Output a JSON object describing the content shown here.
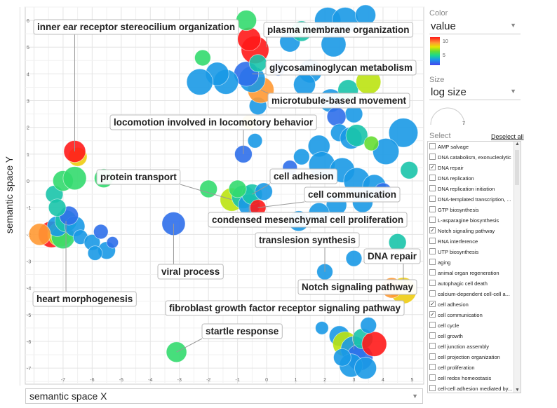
{
  "axes": {
    "x_label": "semantic space X",
    "y_label": "semantic space Y"
  },
  "color_panel": {
    "title": "Color",
    "selected": "value",
    "scale_max": "10",
    "scale_mid": "5",
    "colors": [
      "#ff1a1a",
      "#ff9933",
      "#e6e600",
      "#66dd33",
      "#1ad98c",
      "#1a99e6",
      "#3355ee",
      "#4444ee"
    ]
  },
  "size_panel": {
    "title": "Size",
    "selected": "log size",
    "dial_value": "7"
  },
  "select_panel": {
    "title": "Select",
    "deselect_label": "Deselect all",
    "items": [
      {
        "label": "AMP salvage",
        "checked": false
      },
      {
        "label": "DNA catabolism, exonucleolytic",
        "checked": false
      },
      {
        "label": "DNA repair",
        "checked": true
      },
      {
        "label": "DNA replication",
        "checked": false
      },
      {
        "label": "DNA replication initiation",
        "checked": false
      },
      {
        "label": "DNA-templated transcription, ...",
        "checked": false
      },
      {
        "label": "GTP biosynthesis",
        "checked": false
      },
      {
        "label": "L-asparagine biosynthesis",
        "checked": false
      },
      {
        "label": "Notch signaling pathway",
        "checked": true
      },
      {
        "label": "RNA interference",
        "checked": false
      },
      {
        "label": "UTP biosynthesis",
        "checked": false
      },
      {
        "label": "aging",
        "checked": false
      },
      {
        "label": "animal organ regeneration",
        "checked": false
      },
      {
        "label": "autophagic cell death",
        "checked": false
      },
      {
        "label": "calcium-dependent cell-cell a...",
        "checked": false
      },
      {
        "label": "cell adhesion",
        "checked": true
      },
      {
        "label": "cell communication",
        "checked": true
      },
      {
        "label": "cell cycle",
        "checked": false
      },
      {
        "label": "cell growth",
        "checked": false
      },
      {
        "label": "cell junction assembly",
        "checked": false
      },
      {
        "label": "cell projection organization",
        "checked": false
      },
      {
        "label": "cell proliferation",
        "checked": false
      },
      {
        "label": "cell redox homeostasis",
        "checked": false
      },
      {
        "label": "cell-cell adhesion mediated by...",
        "checked": false
      }
    ]
  },
  "chart_data": {
    "type": "scatter",
    "title": "",
    "xlabel": "semantic space X",
    "ylabel": "semantic space Y",
    "xlim": [
      -8.3,
      5.4
    ],
    "ylim": [
      -7.6,
      6.5
    ],
    "xticks": [
      -7,
      -6,
      -5,
      -4,
      -3,
      -2,
      -1,
      0,
      1,
      2,
      3,
      4,
      5
    ],
    "yticks": [
      -7,
      -6,
      -5,
      -4,
      -3,
      -2,
      -1,
      0,
      1,
      2,
      3,
      4,
      5,
      6
    ],
    "color_metric": "value",
    "color_range": [
      0,
      10
    ],
    "size_metric": "log size",
    "points": [
      {
        "x": -7.4,
        "y": -2.0,
        "v": 0,
        "s": 0.9
      },
      {
        "x": -7.1,
        "y": -2.0,
        "v": 4,
        "s": 0.85
      },
      {
        "x": -7.0,
        "y": -2.1,
        "v": 6,
        "s": 0.8
      },
      {
        "x": -7.2,
        "y": -1.7,
        "v": 8,
        "s": 0.7
      },
      {
        "x": -6.9,
        "y": -1.5,
        "v": 7,
        "s": 0.75
      },
      {
        "x": -6.6,
        "y": -1.7,
        "v": 8,
        "s": 0.7
      },
      {
        "x": -6.8,
        "y": -1.3,
        "v": 9,
        "s": 0.65
      },
      {
        "x": -7.3,
        "y": -0.5,
        "v": 7,
        "s": 0.6
      },
      {
        "x": -7.2,
        "y": -1.0,
        "v": 7,
        "s": 0.6
      },
      {
        "x": -7.0,
        "y": 0.0,
        "v": 6,
        "s": 0.7
      },
      {
        "x": -6.6,
        "y": 0.1,
        "v": 6,
        "s": 0.8
      },
      {
        "x": -6.5,
        "y": 0.9,
        "v": 3,
        "s": 0.65
      },
      {
        "x": -6.6,
        "y": 1.1,
        "v": 0,
        "s": 0.75
      },
      {
        "x": -5.6,
        "y": 0.1,
        "v": 6,
        "s": 0.65
      },
      {
        "x": -6.4,
        "y": -2.1,
        "v": 8,
        "s": 0.5
      },
      {
        "x": -6.0,
        "y": -2.3,
        "v": 8,
        "s": 0.55
      },
      {
        "x": -5.7,
        "y": -1.9,
        "v": 9,
        "s": 0.5
      },
      {
        "x": -5.5,
        "y": -2.6,
        "v": 8,
        "s": 0.6
      },
      {
        "x": -5.9,
        "y": -2.7,
        "v": 8,
        "s": 0.5
      },
      {
        "x": -5.3,
        "y": -2.3,
        "v": 9,
        "s": 0.4
      },
      {
        "x": -7.8,
        "y": -2.0,
        "v": 2,
        "s": 0.75
      },
      {
        "x": -3.2,
        "y": -1.6,
        "v": 9,
        "s": 0.8
      },
      {
        "x": -3.1,
        "y": -6.4,
        "v": 6,
        "s": 0.7
      },
      {
        "x": -2.0,
        "y": -0.3,
        "v": 6,
        "s": 0.6
      },
      {
        "x": -1.2,
        "y": -0.7,
        "v": 4,
        "s": 0.8
      },
      {
        "x": -0.8,
        "y": -0.6,
        "v": 7,
        "s": 0.8
      },
      {
        "x": -0.6,
        "y": -0.9,
        "v": 8,
        "s": 0.75
      },
      {
        "x": -0.5,
        "y": -0.5,
        "v": 7,
        "s": 0.7
      },
      {
        "x": -0.3,
        "y": -1.0,
        "v": 0,
        "s": 0.55
      },
      {
        "x": -1.0,
        "y": -0.3,
        "v": 6,
        "s": 0.6
      },
      {
        "x": -0.1,
        "y": -0.4,
        "v": 8,
        "s": 0.6
      },
      {
        "x": -0.8,
        "y": 1.0,
        "v": 9,
        "s": 0.6
      },
      {
        "x": -0.4,
        "y": 1.5,
        "v": 8,
        "s": 0.5
      },
      {
        "x": -0.6,
        "y": 2.2,
        "v": 3,
        "s": 0.5
      },
      {
        "x": -0.3,
        "y": 2.8,
        "v": 8,
        "s": 0.6
      },
      {
        "x": -0.2,
        "y": 3.4,
        "v": 2,
        "s": 0.9
      },
      {
        "x": -0.5,
        "y": 3.8,
        "v": 8,
        "s": 0.9
      },
      {
        "x": -0.7,
        "y": 4.0,
        "v": 9,
        "s": 0.85
      },
      {
        "x": -1.4,
        "y": 3.7,
        "v": 8,
        "s": 0.85
      },
      {
        "x": -1.7,
        "y": 4.0,
        "v": 8,
        "s": 0.8
      },
      {
        "x": -2.3,
        "y": 3.7,
        "v": 8,
        "s": 0.9
      },
      {
        "x": -2.2,
        "y": 4.6,
        "v": 6,
        "s": 0.55
      },
      {
        "x": -0.4,
        "y": 4.9,
        "v": 0,
        "s": 0.95
      },
      {
        "x": -0.6,
        "y": 5.3,
        "v": 0,
        "s": 0.8
      },
      {
        "x": -0.7,
        "y": 6.0,
        "v": 6,
        "s": 0.7
      },
      {
        "x": -0.3,
        "y": 4.4,
        "v": 7,
        "s": 0.6
      },
      {
        "x": 0.4,
        "y": 4.2,
        "v": 9,
        "s": 0.5
      },
      {
        "x": 0.8,
        "y": 5.2,
        "v": 8,
        "s": 0.7
      },
      {
        "x": 1.2,
        "y": 5.6,
        "v": 7,
        "s": 0.7
      },
      {
        "x": 2.1,
        "y": 6.0,
        "v": 8,
        "s": 0.9
      },
      {
        "x": 2.7,
        "y": 6.0,
        "v": 8,
        "s": 0.9
      },
      {
        "x": 3.4,
        "y": 6.2,
        "v": 8,
        "s": 0.7
      },
      {
        "x": 2.3,
        "y": 5.1,
        "v": 8,
        "s": 0.85
      },
      {
        "x": 1.5,
        "y": 4.1,
        "v": 8,
        "s": 0.8
      },
      {
        "x": 1.3,
        "y": 3.6,
        "v": 8,
        "s": 0.75
      },
      {
        "x": 2.2,
        "y": 3.0,
        "v": 8,
        "s": 0.8
      },
      {
        "x": 2.8,
        "y": 3.4,
        "v": 7,
        "s": 0.7
      },
      {
        "x": 3.5,
        "y": 3.7,
        "v": 4,
        "s": 0.85
      },
      {
        "x": 3.0,
        "y": 2.5,
        "v": 8,
        "s": 0.6
      },
      {
        "x": 2.4,
        "y": 2.4,
        "v": 9,
        "s": 0.65
      },
      {
        "x": 2.5,
        "y": 1.8,
        "v": 8,
        "s": 0.6
      },
      {
        "x": 2.9,
        "y": 1.6,
        "v": 8,
        "s": 0.75
      },
      {
        "x": 3.1,
        "y": 1.7,
        "v": 7,
        "s": 0.75
      },
      {
        "x": 4.7,
        "y": 1.8,
        "v": 8,
        "s": 1.0
      },
      {
        "x": 4.1,
        "y": 1.1,
        "v": 8,
        "s": 0.9
      },
      {
        "x": 1.8,
        "y": 1.3,
        "v": 8,
        "s": 0.75
      },
      {
        "x": 1.9,
        "y": 0.6,
        "v": 8,
        "s": 0.9
      },
      {
        "x": 2.6,
        "y": 0.4,
        "v": 8,
        "s": 0.85
      },
      {
        "x": 3.1,
        "y": 0.0,
        "v": 8,
        "s": 0.9
      },
      {
        "x": 3.7,
        "y": -0.2,
        "v": 8,
        "s": 0.8
      },
      {
        "x": 2.4,
        "y": -0.9,
        "v": 8,
        "s": 0.7
      },
      {
        "x": 3.3,
        "y": -0.8,
        "v": 8,
        "s": 0.7
      },
      {
        "x": 1.1,
        "y": -1.5,
        "v": 8,
        "s": 0.7
      },
      {
        "x": 1.8,
        "y": -1.2,
        "v": 8,
        "s": 0.7
      },
      {
        "x": 4.5,
        "y": -2.3,
        "v": 7,
        "s": 0.6
      },
      {
        "x": 4.7,
        "y": -4.1,
        "v": 3,
        "s": 0.9
      },
      {
        "x": 4.3,
        "y": -4.0,
        "v": 2,
        "s": 0.7
      },
      {
        "x": 2.0,
        "y": -3.4,
        "v": 8,
        "s": 0.55
      },
      {
        "x": 3.0,
        "y": -2.9,
        "v": 8,
        "s": 0.55
      },
      {
        "x": 2.5,
        "y": -5.8,
        "v": 8,
        "s": 0.7
      },
      {
        "x": 2.7,
        "y": -6.1,
        "v": 4,
        "s": 0.85
      },
      {
        "x": 3.0,
        "y": -6.3,
        "v": 8,
        "s": 0.9
      },
      {
        "x": 3.2,
        "y": -6.6,
        "v": 9,
        "s": 0.9
      },
      {
        "x": 3.3,
        "y": -5.9,
        "v": 7,
        "s": 0.7
      },
      {
        "x": 3.7,
        "y": -6.1,
        "v": 0,
        "s": 0.85
      },
      {
        "x": 3.5,
        "y": -5.4,
        "v": 8,
        "s": 0.55
      },
      {
        "x": 2.9,
        "y": -6.9,
        "v": 8,
        "s": 0.8
      },
      {
        "x": 3.4,
        "y": -7.0,
        "v": 8,
        "s": 0.75
      },
      {
        "x": 2.6,
        "y": -6.6,
        "v": 8,
        "s": 0.6
      },
      {
        "x": 1.9,
        "y": -5.5,
        "v": 8,
        "s": 0.45
      },
      {
        "x": 0.8,
        "y": 0.5,
        "v": 9,
        "s": 0.5
      },
      {
        "x": 1.2,
        "y": 0.9,
        "v": 8,
        "s": 0.55
      },
      {
        "x": 4.9,
        "y": 0.4,
        "v": 7,
        "s": 0.6
      },
      {
        "x": 4.0,
        "y": -0.4,
        "v": 9,
        "s": 0.6
      },
      {
        "x": 3.6,
        "y": 1.4,
        "v": 5,
        "s": 0.5
      }
    ],
    "annotations": [
      {
        "text": "inner ear receptor stereocilium organization",
        "tx": -6.6,
        "ty": 1.1
      },
      {
        "text": "plasma membrane organization",
        "tx": 0.0,
        "ty": 5.0
      },
      {
        "text": "glycosaminoglycan metabolism",
        "tx": -0.5,
        "ty": 4.0
      },
      {
        "text": "microtubule-based movement",
        "tx": -0.2,
        "ty": 3.4
      },
      {
        "text": "locomotion involved in locomotory behavior",
        "tx": -0.8,
        "ty": 1.0
      },
      {
        "text": "protein transport",
        "tx": -1.2,
        "ty": -0.7
      },
      {
        "text": "cell adhesion",
        "tx": -0.5,
        "ty": -0.5
      },
      {
        "text": "cell communication",
        "tx": -0.3,
        "ty": -1.0
      },
      {
        "text": "condensed mesenchymal cell proliferation",
        "tx": -0.6,
        "ty": -0.9
      },
      {
        "text": "translesion synthesis",
        "tx": 2.0,
        "ty": -3.4
      },
      {
        "text": "DNA repair",
        "tx": 4.7,
        "ty": -4.1
      },
      {
        "text": "viral process",
        "tx": -3.2,
        "ty": -1.6
      },
      {
        "text": "Notch signaling pathway",
        "tx": 4.3,
        "ty": -4.0
      },
      {
        "text": "heart morphogenesis",
        "tx": -6.9,
        "ty": -1.5
      },
      {
        "text": "fibroblast growth factor receptor signaling pathway",
        "tx": 3.0,
        "ty": -6.3
      },
      {
        "text": "startle response",
        "tx": -3.1,
        "ty": -6.4
      }
    ]
  }
}
